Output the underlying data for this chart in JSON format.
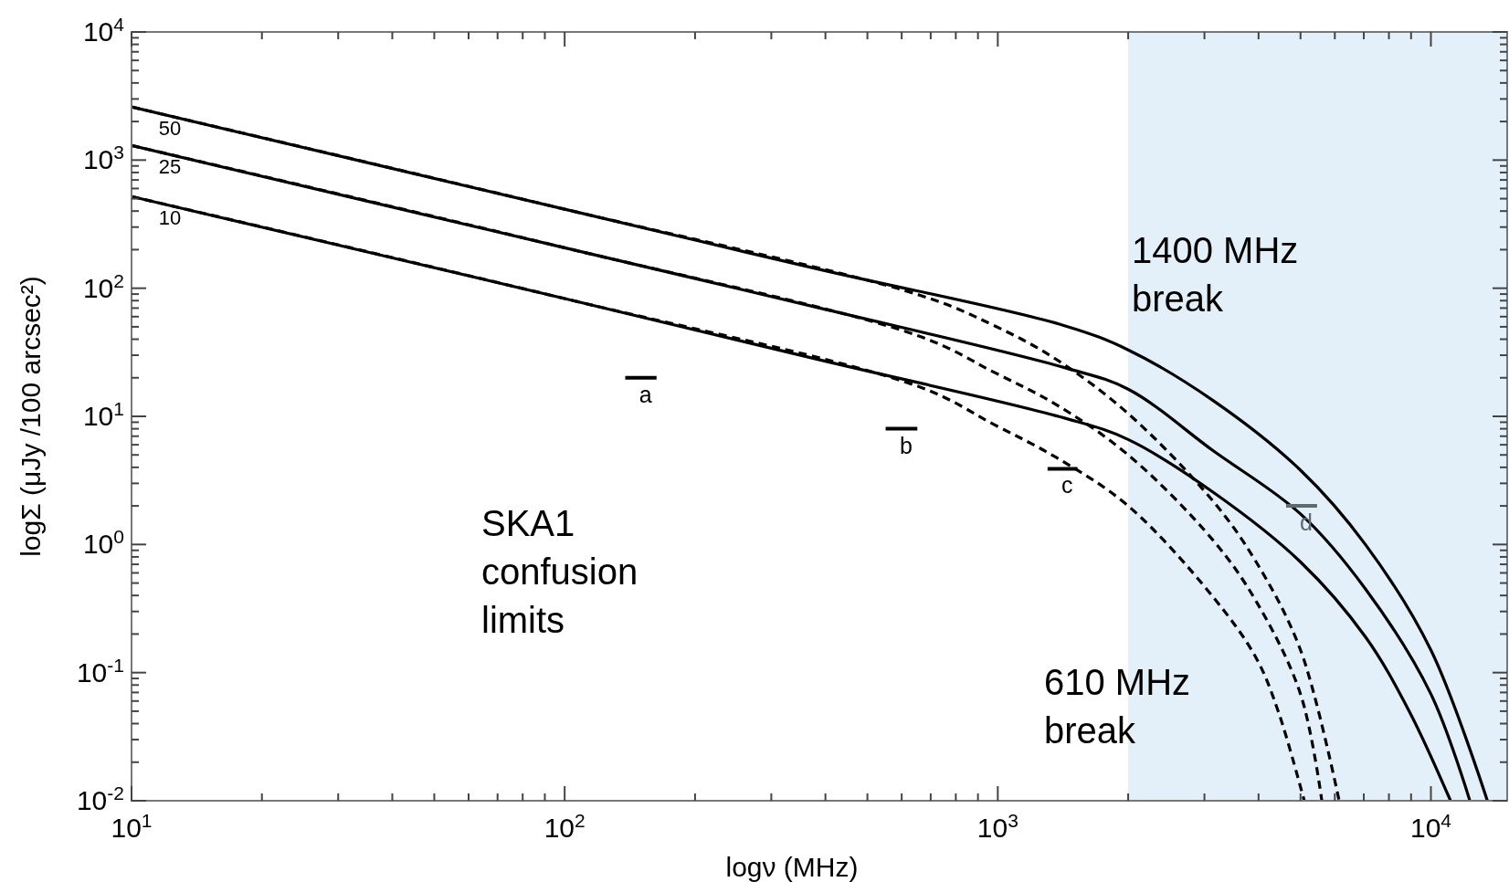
{
  "chart_data": {
    "type": "line",
    "xlabel": "logν (MHz)",
    "ylabel": "logΣ (μJy /100 arcsec²)",
    "log": "xy",
    "grid": false,
    "xlim": [
      10,
      15000
    ],
    "ylim": [
      0.01,
      10000
    ],
    "xticks": [
      {
        "value": 10,
        "label": "10$^{1}$"
      },
      {
        "value": 20,
        "label": null
      },
      {
        "value": 30,
        "label": null
      },
      {
        "value": 40,
        "label": null
      },
      {
        "value": 50,
        "label": null
      },
      {
        "value": 60,
        "label": null
      },
      {
        "value": 70,
        "label": null
      },
      {
        "value": 80,
        "label": null
      },
      {
        "value": 90,
        "label": null
      },
      {
        "value": 100,
        "label": "10$^{2}$"
      },
      {
        "value": 200,
        "label": null
      },
      {
        "value": 300,
        "label": null
      },
      {
        "value": 400,
        "label": null
      },
      {
        "value": 500,
        "label": null
      },
      {
        "value": 600,
        "label": null
      },
      {
        "value": 700,
        "label": null
      },
      {
        "value": 800,
        "label": null
      },
      {
        "value": 900,
        "label": null
      },
      {
        "value": 1000,
        "label": "10$^{3}$"
      },
      {
        "value": 2000,
        "label": null
      },
      {
        "value": 3000,
        "label": null
      },
      {
        "value": 4000,
        "label": null
      },
      {
        "value": 5000,
        "label": null
      },
      {
        "value": 6000,
        "label": null
      },
      {
        "value": 7000,
        "label": null
      },
      {
        "value": 8000,
        "label": null
      },
      {
        "value": 9000,
        "label": null
      },
      {
        "value": 10000,
        "label": "10$^{4}$"
      }
    ],
    "yticks": [
      {
        "value": 0.01,
        "label": "10$^{-2}$"
      },
      {
        "value": 0.02,
        "label": null
      },
      {
        "value": 0.03,
        "label": null
      },
      {
        "value": 0.04,
        "label": null
      },
      {
        "value": 0.05,
        "label": null
      },
      {
        "value": 0.06,
        "label": null
      },
      {
        "value": 0.07,
        "label": null
      },
      {
        "value": 0.08,
        "label": null
      },
      {
        "value": 0.09,
        "label": null
      },
      {
        "value": 0.1,
        "label": "10$^{-1}$"
      },
      {
        "value": 0.2,
        "label": null
      },
      {
        "value": 0.3,
        "label": null
      },
      {
        "value": 0.4,
        "label": null
      },
      {
        "value": 0.5,
        "label": null
      },
      {
        "value": 0.6,
        "label": null
      },
      {
        "value": 0.7,
        "label": null
      },
      {
        "value": 0.8,
        "label": null
      },
      {
        "value": 0.9,
        "label": null
      },
      {
        "value": 1,
        "label": "10$^{0}$"
      },
      {
        "value": 2,
        "label": null
      },
      {
        "value": 3,
        "label": null
      },
      {
        "value": 4,
        "label": null
      },
      {
        "value": 5,
        "label": null
      },
      {
        "value": 6,
        "label": null
      },
      {
        "value": 7,
        "label": null
      },
      {
        "value": 8,
        "label": null
      },
      {
        "value": 9,
        "label": null
      },
      {
        "value": 10,
        "label": "10$^{1}$"
      },
      {
        "value": 20,
        "label": null
      },
      {
        "value": 30,
        "label": null
      },
      {
        "value": 40,
        "label": null
      },
      {
        "value": 50,
        "label": null
      },
      {
        "value": 60,
        "label": null
      },
      {
        "value": 70,
        "label": null
      },
      {
        "value": 80,
        "label": null
      },
      {
        "value": 90,
        "label": null
      },
      {
        "value": 100,
        "label": "10$^{2}$"
      },
      {
        "value": 200,
        "label": null
      },
      {
        "value": 300,
        "label": null
      },
      {
        "value": 400,
        "label": null
      },
      {
        "value": 500,
        "label": null
      },
      {
        "value": 600,
        "label": null
      },
      {
        "value": 700,
        "label": null
      },
      {
        "value": 800,
        "label": null
      },
      {
        "value": 900,
        "label": null
      },
      {
        "value": 1000,
        "label": "10$^{3}$"
      },
      {
        "value": 2000,
        "label": null
      },
      {
        "value": 3000,
        "label": null
      },
      {
        "value": 4000,
        "label": null
      },
      {
        "value": 5000,
        "label": null
      },
      {
        "value": 6000,
        "label": null
      },
      {
        "value": 7000,
        "label": null
      },
      {
        "value": 8000,
        "label": null
      },
      {
        "value": 9000,
        "label": null
      },
      {
        "value": 10000,
        "label": "10$^{4}$"
      }
    ],
    "bands": [
      {
        "axis": "x",
        "from": 2000,
        "to": 15000,
        "color": "#e3f0fa"
      }
    ],
    "series": [
      {
        "name": "50",
        "color": "#000000",
        "line_style": "solid",
        "x": [
          10,
          100,
          388,
          1426,
          2000,
          3140,
          5000,
          7060,
          10000,
          13500
        ],
        "values": [
          2600,
          414,
          140,
          51,
          33,
          13.3,
          3.8,
          1.0,
          0.15,
          0.01
        ]
      },
      {
        "name": "25",
        "color": "#000000",
        "line_style": "solid",
        "x": [
          10,
          100,
          388,
          1426,
          2000,
          3140,
          5000,
          7060,
          10000,
          12300
        ],
        "values": [
          1300,
          207,
          70,
          24,
          16.3,
          5.4,
          1.73,
          0.45,
          0.068,
          0.01
        ]
      },
      {
        "name": "10",
        "color": "#000000",
        "line_style": "solid",
        "x": [
          10,
          100,
          388,
          1426,
          2000,
          3140,
          5000,
          7060,
          8910,
          11100
        ],
        "values": [
          520,
          83,
          27.6,
          9.7,
          6.6,
          2.56,
          0.73,
          0.19,
          0.05,
          0.01
        ]
      },
      {
        "color": "#000000",
        "line_style": "dashed",
        "x": [
          10,
          100,
          662,
          982,
          1361,
          2000,
          3140,
          3950,
          5000,
          6140
        ],
        "values": [
          2600,
          414,
          88,
          51,
          28,
          10.5,
          2.18,
          0.73,
          0.15,
          0.01
        ]
      },
      {
        "color": "#000000",
        "line_style": "dashed",
        "x": [
          10,
          100,
          662,
          982,
          1361,
          2000,
          3140,
          3950,
          5000,
          5600
        ],
        "values": [
          1300,
          207,
          42,
          22,
          12.4,
          5.0,
          1.08,
          0.36,
          0.068,
          0.01
        ]
      },
      {
        "color": "#000000",
        "line_style": "dashed",
        "x": [
          10,
          100,
          662,
          982,
          1361,
          2000,
          3140,
          3950,
          4440,
          5100
        ],
        "values": [
          520,
          83,
          16.9,
          8.6,
          4.8,
          2.0,
          0.39,
          0.13,
          0.05,
          0.01
        ]
      },
      {
        "name": "a",
        "color": "#000000",
        "line_style": "solid",
        "x": [
          138,
          163
        ],
        "values": [
          20,
          20
        ]
      },
      {
        "name": "b",
        "color": "#000000",
        "line_style": "solid",
        "x": [
          551,
          652
        ],
        "values": [
          8,
          8
        ]
      },
      {
        "name": "c",
        "color": "#000000",
        "line_style": "solid",
        "x": [
          1303,
          1528
        ],
        "values": [
          3.9,
          3.9
        ]
      },
      {
        "name": "d",
        "color": "#5f6a70",
        "line_style": "solid",
        "x": [
          4630,
          5460
        ],
        "values": [
          2,
          2
        ]
      }
    ],
    "annotations": [
      "SKA1\nconfusion\nlimits",
      "1400 MHz\nbreak",
      "610 MHz\nbreak"
    ]
  }
}
